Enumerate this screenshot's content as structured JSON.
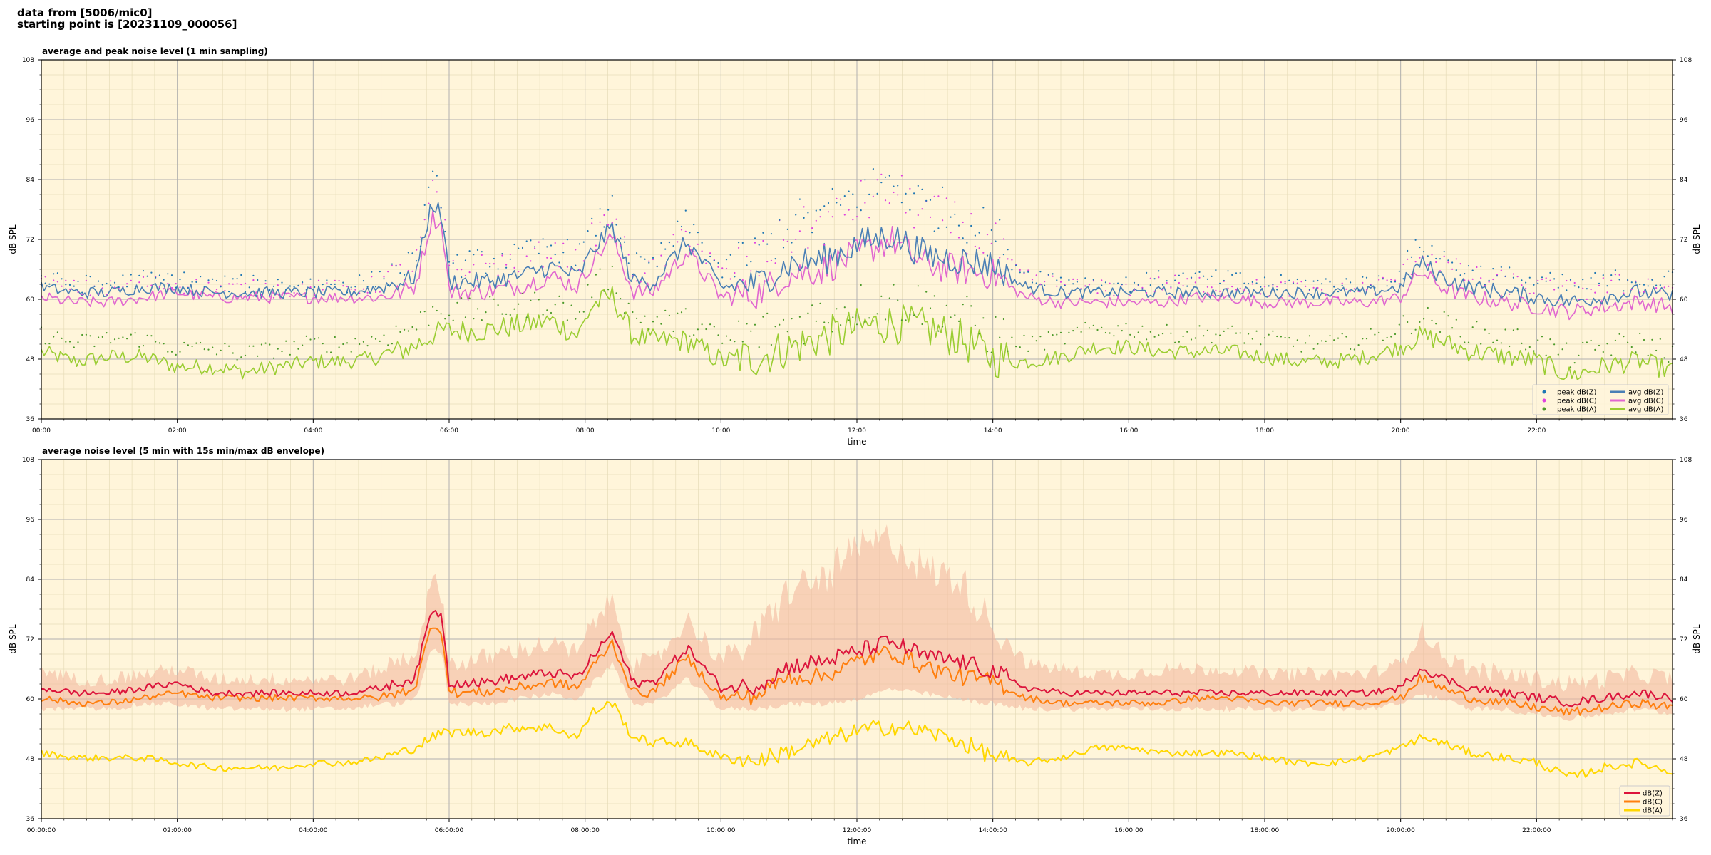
{
  "header": {
    "line1": "data from [5006/mic0]",
    "line2": "starting point is [20231109_000056]"
  },
  "colors": {
    "plot_bg": "#fff5da",
    "grid_major": "#b0b0b0",
    "grid_minor": "#e6dcb8",
    "peak_z": "#1f77b4",
    "peak_c": "#e040e0",
    "peak_a": "#4c9a2a",
    "avg_z": "#4a7fb5",
    "avg_c": "#e066d0",
    "avg_a": "#9acd32",
    "db_z": "#dc143c",
    "db_c": "#ff7f0e",
    "db_a": "#ffd700",
    "envelope": "#f4b9a0"
  },
  "chart_data": [
    {
      "type": "line",
      "title": "average and peak noise level (1 min sampling)",
      "xlabel": "time",
      "ylabel": "dB SPL",
      "ylim": [
        36,
        108
      ],
      "yticks": [
        "36",
        "48",
        "60",
        "72",
        "84",
        "96",
        "108"
      ],
      "xlim_hours": [
        0,
        24
      ],
      "xticks": [
        "00:00",
        "02:00",
        "04:00",
        "06:00",
        "08:00",
        "10:00",
        "12:00",
        "14:00",
        "16:00",
        "18:00",
        "20:00",
        "22:00"
      ],
      "grid": true,
      "legend_position": "bottom-right",
      "legend": [
        "peak dB(Z)",
        "peak dB(C)",
        "peak dB(A)",
        "avg dB(Z)",
        "avg dB(C)",
        "avg dB(A)"
      ],
      "x": [
        0,
        0.5,
        1,
        1.5,
        2,
        2.5,
        3,
        3.5,
        4,
        4.5,
        5,
        5.3,
        5.5,
        5.75,
        5.9,
        6,
        6.5,
        7,
        7.5,
        7.9,
        8.1,
        8.4,
        8.7,
        9,
        9.5,
        10,
        10.5,
        11,
        11.5,
        12,
        12.5,
        13,
        13.5,
        14,
        14.5,
        15,
        15.5,
        16,
        16.5,
        17,
        17.5,
        18,
        18.5,
        19,
        19.5,
        20,
        20.3,
        20.6,
        21,
        21.5,
        22,
        22.5,
        23,
        23.5,
        24
      ],
      "series": [
        {
          "name": "avg dB(Z)",
          "values": [
            62,
            61,
            61,
            62,
            62,
            61,
            61,
            61,
            61,
            61,
            62,
            63,
            64,
            79,
            76,
            63,
            63,
            64,
            66,
            64,
            69,
            74,
            63,
            63,
            71,
            62,
            62,
            66,
            67,
            70,
            72,
            68,
            67,
            66,
            62,
            61,
            61,
            61,
            61,
            61,
            61,
            61,
            61,
            61,
            61,
            62,
            67,
            64,
            62,
            61,
            60,
            59,
            60,
            61,
            60
          ]
        },
        {
          "name": "avg dB(C)",
          "values": [
            60,
            59,
            59,
            60,
            61,
            60,
            60,
            60,
            60,
            60,
            60,
            61,
            62,
            76,
            74,
            61,
            61,
            62,
            64,
            62,
            67,
            72,
            61,
            61,
            69,
            60,
            60,
            64,
            65,
            68,
            71,
            66,
            65,
            64,
            60,
            59,
            59,
            59,
            59,
            60,
            60,
            59,
            59,
            59,
            59,
            60,
            65,
            62,
            60,
            59,
            58,
            57,
            58,
            59,
            58
          ]
        },
        {
          "name": "avg dB(A)",
          "values": [
            49,
            47,
            48,
            48,
            46,
            46,
            45,
            46,
            47,
            47,
            48,
            49,
            50,
            52,
            53,
            53,
            53,
            54,
            55,
            52,
            58,
            60,
            52,
            51,
            51,
            47,
            47,
            49,
            51,
            53,
            54,
            53,
            51,
            47,
            47,
            48,
            50,
            50,
            49,
            49,
            49,
            48,
            47,
            47,
            48,
            50,
            52,
            51,
            49,
            48,
            47,
            44,
            46,
            47,
            45
          ]
        },
        {
          "name": "peak dB(Z)",
          "values": [
            63,
            62,
            62,
            63,
            63,
            62,
            62,
            62,
            62,
            62,
            63,
            65,
            66,
            82,
            79,
            65,
            66,
            67,
            69,
            67,
            72,
            77,
            65,
            65,
            74,
            64,
            66,
            72,
            74,
            78,
            81,
            76,
            74,
            70,
            64,
            63,
            62,
            62,
            63,
            63,
            63,
            62,
            62,
            62,
            62,
            64,
            70,
            67,
            64,
            63,
            62,
            61,
            62,
            63,
            62
          ]
        },
        {
          "name": "peak dB(C)",
          "values": [
            62,
            61,
            61,
            62,
            62,
            61,
            61,
            61,
            61,
            61,
            62,
            64,
            65,
            80,
            77,
            64,
            65,
            66,
            68,
            66,
            71,
            75,
            64,
            64,
            72,
            63,
            64,
            70,
            72,
            76,
            79,
            74,
            72,
            68,
            63,
            62,
            61,
            61,
            62,
            62,
            62,
            61,
            61,
            61,
            61,
            63,
            68,
            66,
            63,
            62,
            61,
            60,
            61,
            62,
            61
          ]
        },
        {
          "name": "peak dB(A)",
          "values": [
            52,
            50,
            51,
            51,
            49,
            49,
            48,
            49,
            50,
            50,
            51,
            52,
            53,
            56,
            57,
            56,
            56,
            57,
            58,
            55,
            61,
            63,
            55,
            54,
            54,
            50,
            50,
            52,
            54,
            56,
            57,
            56,
            54,
            50,
            50,
            51,
            53,
            53,
            52,
            52,
            52,
            51,
            50,
            50,
            51,
            53,
            55,
            54,
            52,
            51,
            50,
            47,
            49,
            50,
            48
          ]
        }
      ]
    },
    {
      "type": "line",
      "title": "average noise level (5 min with 15s min/max dB envelope)",
      "xlabel": "time",
      "ylabel": "dB SPL",
      "ylim": [
        36,
        108
      ],
      "yticks": [
        "36",
        "48",
        "60",
        "72",
        "84",
        "96",
        "108"
      ],
      "xlim_hours": [
        0,
        24
      ],
      "xticks": [
        "00:00:00",
        "02:00:00",
        "04:00:00",
        "06:00:00",
        "08:00:00",
        "10:00:00",
        "12:00:00",
        "14:00:00",
        "16:00:00",
        "18:00:00",
        "20:00:00",
        "22:00:00"
      ],
      "grid": true,
      "legend_position": "bottom-right",
      "legend": [
        "dB(Z)",
        "dB(C)",
        "dB(A)"
      ],
      "x": [
        0,
        0.5,
        1,
        1.5,
        2,
        2.5,
        3,
        3.5,
        4,
        4.5,
        5,
        5.3,
        5.5,
        5.75,
        5.9,
        6,
        6.5,
        7,
        7.5,
        7.9,
        8.1,
        8.4,
        8.7,
        9,
        9.5,
        10,
        10.5,
        11,
        11.5,
        12,
        12.5,
        13,
        13.5,
        14,
        14.5,
        15,
        15.5,
        16,
        16.5,
        17,
        17.5,
        18,
        18.5,
        19,
        19.5,
        20,
        20.3,
        20.6,
        21,
        21.5,
        22,
        22.5,
        23,
        23.5,
        24
      ],
      "series": [
        {
          "name": "dB(Z)",
          "values": [
            62,
            61,
            61,
            62,
            63,
            61,
            61,
            61,
            61,
            61,
            62,
            63,
            64,
            78,
            76,
            63,
            63,
            64,
            65,
            64,
            68,
            73,
            63,
            63,
            70,
            62,
            62,
            66,
            67,
            69,
            71,
            68,
            67,
            65,
            62,
            61,
            61,
            61,
            61,
            61,
            61,
            61,
            61,
            61,
            61,
            62,
            66,
            64,
            62,
            61,
            60,
            59,
            60,
            61,
            60
          ]
        },
        {
          "name": "dB(C)",
          "values": [
            60,
            59,
            59,
            60,
            61,
            60,
            60,
            60,
            60,
            60,
            60,
            61,
            62,
            75,
            73,
            61,
            61,
            62,
            63,
            62,
            66,
            71,
            61,
            61,
            68,
            60,
            60,
            64,
            64,
            67,
            69,
            66,
            64,
            63,
            60,
            59,
            59,
            59,
            59,
            60,
            60,
            59,
            59,
            59,
            59,
            60,
            64,
            62,
            60,
            59,
            58,
            57,
            58,
            59,
            58
          ]
        },
        {
          "name": "dB(A)",
          "values": [
            49,
            48,
            48,
            48,
            47,
            46,
            46,
            46,
            47,
            47,
            48,
            49,
            50,
            52,
            53,
            53,
            53,
            54,
            54,
            52,
            57,
            59,
            52,
            51,
            51,
            48,
            47,
            49,
            51,
            53,
            54,
            53,
            51,
            48,
            47,
            48,
            50,
            50,
            49,
            49,
            49,
            48,
            47,
            47,
            48,
            50,
            52,
            51,
            49,
            48,
            47,
            44,
            46,
            47,
            45
          ]
        }
      ],
      "envelope": {
        "name": "dB(Z) 15s min/max",
        "max": [
          66,
          64,
          64,
          65,
          66,
          64,
          64,
          64,
          64,
          64,
          66,
          68,
          69,
          84,
          81,
          67,
          68,
          70,
          71,
          69,
          75,
          80,
          67,
          67,
          76,
          68,
          72,
          82,
          84,
          90,
          92,
          86,
          84,
          75,
          67,
          66,
          65,
          65,
          66,
          66,
          66,
          65,
          65,
          65,
          65,
          67,
          74,
          69,
          66,
          65,
          64,
          63,
          64,
          65,
          64
        ],
        "min": [
          58,
          58,
          58,
          59,
          59,
          58,
          58,
          58,
          58,
          58,
          59,
          59,
          60,
          70,
          69,
          59,
          59,
          60,
          61,
          60,
          63,
          67,
          59,
          59,
          64,
          58,
          58,
          59,
          59,
          60,
          62,
          61,
          60,
          59,
          58,
          58,
          58,
          58,
          58,
          58,
          58,
          58,
          58,
          58,
          58,
          59,
          61,
          60,
          58,
          58,
          57,
          56,
          57,
          58,
          57
        ]
      }
    }
  ]
}
